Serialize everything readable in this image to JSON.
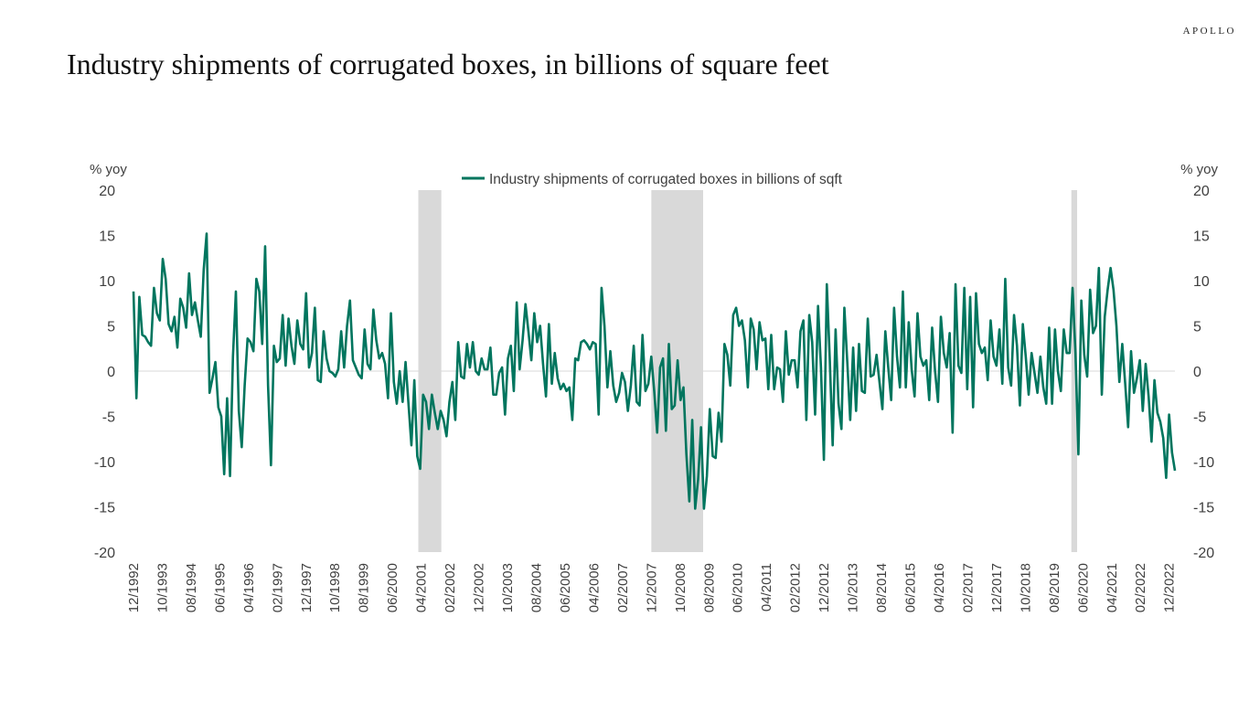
{
  "brand": "APOLLO",
  "title": "Industry shipments of corrugated boxes, in billions of square feet",
  "chart_data": {
    "type": "line",
    "title": "Industry shipments of corrugated boxes, in billions of square feet",
    "ylabel_left": "% yoy",
    "ylabel_right": "% yoy",
    "ylim": [
      -20,
      20
    ],
    "yticks": [
      -20,
      -15,
      -10,
      -5,
      0,
      5,
      10,
      15,
      20
    ],
    "x_start": "12/1992",
    "x_end": "02/2023",
    "frequency": "monthly",
    "x_tick_labels": [
      "12/1992",
      "10/1993",
      "08/1994",
      "06/1995",
      "04/1996",
      "02/1997",
      "12/1997",
      "10/1998",
      "08/1999",
      "06/2000",
      "04/2001",
      "02/2002",
      "12/2002",
      "10/2003",
      "08/2004",
      "06/2005",
      "04/2006",
      "02/2007",
      "12/2007",
      "10/2008",
      "08/2009",
      "06/2010",
      "04/2011",
      "02/2012",
      "12/2012",
      "10/2013",
      "08/2014",
      "06/2015",
      "04/2016",
      "02/2017",
      "12/2017",
      "10/2018",
      "08/2019",
      "06/2020",
      "04/2021",
      "02/2022",
      "12/2022"
    ],
    "legend": "Industry shipments of corrugated boxes in billions of sqft",
    "recessions": [
      {
        "start": "03/2001",
        "end": "11/2001"
      },
      {
        "start": "12/2007",
        "end": "06/2009"
      },
      {
        "start": "02/2020",
        "end": "04/2020"
      }
    ],
    "series": [
      {
        "name": "Industry shipments of corrugated boxes in billions of sqft",
        "color": "#00755E",
        "values": [
          8.8,
          -3,
          8.2,
          4,
          3.8,
          3.2,
          2.8,
          9.2,
          6.4,
          5.6,
          12.4,
          10.2,
          5.2,
          4.4,
          6,
          2.6,
          8,
          7,
          4.8,
          10.8,
          6.2,
          7.6,
          5.6,
          3.8,
          11.2,
          15.2,
          -2.4,
          -0.8,
          1,
          -4,
          -5,
          -11.4,
          -3,
          -11.6,
          1.6,
          8.8,
          -4.4,
          -8.4,
          -1.6,
          3.6,
          3.2,
          2.2,
          10.2,
          8.8,
          3,
          13.8,
          -1.6,
          -10.4,
          2.8,
          1,
          1.4,
          6.2,
          0.6,
          5.8,
          2.8,
          0.8,
          5.6,
          3,
          2.4,
          8.6,
          0.4,
          2,
          7,
          -1,
          -1.2,
          4.4,
          1.4,
          0,
          -0.2,
          -0.6,
          0.2,
          4.4,
          0.4,
          5,
          7.8,
          1.2,
          0.4,
          -0.4,
          -0.8,
          4.6,
          0.8,
          0.2,
          6.8,
          3.4,
          1.4,
          2,
          0.8,
          -3,
          6.4,
          -1.2,
          -3.6,
          0,
          -3.4,
          1,
          -3.6,
          -8.2,
          -1,
          -9.4,
          -10.8,
          -2.6,
          -3.4,
          -6.4,
          -2.6,
          -4.6,
          -6.4,
          -4.4,
          -5.4,
          -7.2,
          -3.4,
          -1.2,
          -5.4,
          3.2,
          -0.6,
          -0.8,
          3,
          0.4,
          3.2,
          0,
          -0.4,
          1.4,
          0.2,
          0.2,
          2.6,
          -2.6,
          -2.6,
          -0.2,
          0.4,
          -4.8,
          1.4,
          2.8,
          -2.2,
          7.6,
          0.2,
          3.4,
          7.4,
          4.4,
          1.2,
          6.4,
          3.2,
          5,
          0.8,
          -2.8,
          5.2,
          -1.4,
          2,
          -0.8,
          -2,
          -1.4,
          -2.2,
          -1.8,
          -5.4,
          1.4,
          1.2,
          3.2,
          3.4,
          3,
          2.4,
          3.2,
          3,
          -4.8,
          9.2,
          5,
          -1.8,
          2.2,
          -1.6,
          -3.4,
          -2.4,
          -0.2,
          -1.2,
          -4.4,
          -1.6,
          2.8,
          -3.4,
          -3.8,
          4,
          -2.2,
          -1.4,
          1.6,
          -2.2,
          -6.8,
          0.4,
          1.4,
          -6.6,
          3,
          -4.2,
          -3.8,
          1.2,
          -3.2,
          -1.8,
          -9.2,
          -14.4,
          -5.4,
          -15.2,
          -12,
          -6.2,
          -15.2,
          -11.6,
          -4.2,
          -9.4,
          -9.6,
          -4.6,
          -7.8,
          3,
          1.8,
          -1.6,
          6.2,
          7,
          5,
          5.6,
          3.4,
          -1.8,
          5.8,
          4.6,
          0.2,
          5.4,
          3.4,
          3.6,
          -2,
          4,
          -2,
          0.4,
          0.2,
          -3.4,
          4.4,
          -0.4,
          1.2,
          1.2,
          -1.8,
          4.4,
          5.6,
          -5.4,
          6.2,
          3.2,
          -4.8,
          7.2,
          0.4,
          -9.8,
          9.6,
          1.4,
          -8.2,
          4.6,
          -3.6,
          -6.4,
          7,
          1,
          -5.4,
          2.6,
          -4.4,
          3,
          -2.2,
          -2.4,
          5.8,
          -0.6,
          -0.4,
          1.8,
          -1.2,
          -4.2,
          4.4,
          0.4,
          -3.2,
          7,
          1.6,
          -1.8,
          8.8,
          -1.8,
          5.4,
          0.2,
          -2.8,
          6.4,
          1.6,
          0.6,
          1.2,
          -3.2,
          4.8,
          0,
          -3.4,
          6,
          2,
          0.4,
          4.2,
          -6.8,
          9.6,
          0.6,
          -0.2,
          9.2,
          -2,
          8.2,
          -4,
          8.6,
          3,
          2,
          2.6,
          -1,
          5.6,
          1.6,
          0.6,
          4.6,
          -1.4,
          10.2,
          0.4,
          -1.6,
          6.2,
          2.8,
          -3.8,
          5.2,
          1.6,
          -2.6,
          2,
          -0.2,
          -2.4,
          1.6,
          -1.8,
          -3.6,
          4.8,
          -3.6,
          4.6,
          0,
          -2.2,
          4.6,
          2,
          2,
          9.2,
          2,
          -9.2,
          7.8,
          1.8,
          -0.6,
          9,
          4.2,
          5,
          11.4,
          -2.6,
          6,
          9,
          11.4,
          9,
          5,
          -1.2,
          3,
          -1.4,
          -6.2,
          2.2,
          -2.4,
          -0.8,
          1.2,
          -4.4,
          0.8,
          -2.8,
          -7.8,
          -1,
          -4.6,
          -5.6,
          -7.4,
          -11.8,
          -4.8,
          -9,
          -11
        ]
      }
    ]
  }
}
